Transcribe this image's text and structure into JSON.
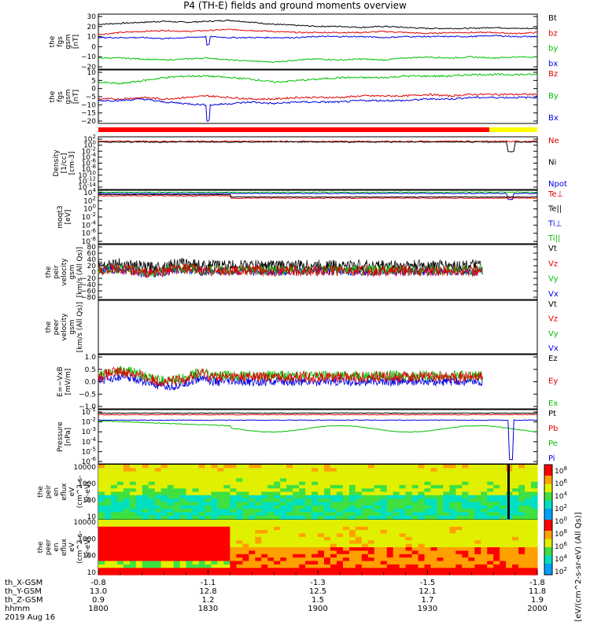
{
  "title": "P4 (TH-E) fields and ground moments overview",
  "chart_data": {
    "type": "line",
    "time_range": [
      "1800",
      "2000"
    ],
    "panels": [
      {
        "id": "fgs-gsm-1",
        "ylabel": [
          "the",
          "fgs",
          "gsm",
          "[nT]"
        ],
        "ticks": [
          "30",
          "20",
          "10",
          "0",
          "−10",
          "−20"
        ],
        "ylim": [
          -22,
          32
        ],
        "legend": [
          "Bt",
          "bz",
          "by",
          "bx"
        ],
        "series": [
          {
            "name": "Bt",
            "color": "#000000",
            "values": [
              22,
              23,
              24,
              25,
              24,
              25,
              26,
              24,
              22,
              21,
              20,
              20,
              19,
              20,
              19,
              18,
              18,
              18,
              19,
              18,
              18
            ]
          },
          {
            "name": "bz",
            "color": "#e00000",
            "values": [
              12,
              14,
              15,
              16,
              15,
              16,
              17,
              16,
              15,
              14,
              14,
              14,
              14,
              15,
              14,
              13,
              14,
              14,
              14,
              13,
              14
            ]
          },
          {
            "name": "by",
            "color": "#00c000",
            "values": [
              -11,
              -11,
              -12,
              -13,
              -12,
              -11,
              -13,
              -14,
              -15,
              -13,
              -12,
              -13,
              -12,
              -13,
              -11,
              -10,
              -11,
              -10,
              -11,
              -10,
              -10
            ]
          },
          {
            "name": "bx",
            "color": "#0000e0",
            "values": [
              9,
              9,
              9,
              8,
              9,
              10,
              9,
              9,
              9,
              9,
              10,
              10,
              10,
              9,
              10,
              10,
              10,
              10,
              11,
              10,
              10
            ]
          }
        ]
      },
      {
        "id": "fgs-gsm-2",
        "ylabel": [
          "the",
          "fgs",
          "gsm",
          "[nT]"
        ],
        "ticks": [
          "10",
          "5",
          "0",
          "−5",
          "−10",
          "−15",
          "−20"
        ],
        "ylim": [
          -22,
          13
        ],
        "legend": [
          "Bz",
          "By",
          "Bx"
        ],
        "series": [
          {
            "name": "Bz",
            "color": "#e00000",
            "values": [
              -6,
              -6,
              -5,
              -6,
              -5,
              -4,
              -5,
              -6,
              -6,
              -5,
              -5,
              -5,
              -4,
              -4,
              -4,
              -3,
              -4,
              -3,
              -3,
              -3,
              -3
            ]
          },
          {
            "name": "By",
            "color": "#00c000",
            "values": [
              5,
              4,
              6,
              8,
              9,
              9,
              8,
              7,
              5,
              6,
              7,
              8,
              8,
              8,
              9,
              9,
              9,
              10,
              10,
              10,
              10
            ]
          },
          {
            "name": "Bx",
            "color": "#0000e0",
            "values": [
              -7,
              -7,
              -6,
              -8,
              -9,
              -10,
              -9,
              -8,
              -9,
              -8,
              -8,
              -8,
              -7,
              -7,
              -7,
              -6,
              -6,
              -5,
              -5,
              -5,
              -5
            ]
          }
        ]
      },
      {
        "id": "density",
        "ylabel": [
          "Density",
          "[1/cc]",
          "[cm-3]"
        ],
        "ticks": [
          "10^2",
          "10^0",
          "10^-2",
          "10^-4",
          "10^-6",
          "10^-8",
          "10^-10",
          "10^-12",
          "10^-14"
        ],
        "legend": [
          "Ne",
          "Ni",
          "Npot"
        ],
        "legend_colors": [
          "#e00000",
          "#000000",
          "#0000e0"
        ]
      },
      {
        "id": "temperature",
        "ylabel": [
          "moqt3",
          "[eV]"
        ],
        "ticks": [
          "10^4",
          "10^2",
          "10^0",
          "10^-2",
          "10^-4",
          "10^-6",
          "10^-8"
        ],
        "legend": [
          "Te⊥",
          "Te||",
          "Ti⊥",
          "Ti||"
        ],
        "legend_colors": [
          "#e00000",
          "#000000",
          "#0000e0",
          "#00c000"
        ]
      },
      {
        "id": "peir-velocity",
        "ylabel": [
          "the",
          "peir",
          "velocity",
          "gsm",
          "[km/s (All Qs)]"
        ],
        "ticks": [
          "80",
          "60",
          "40",
          "20",
          "0",
          "−20",
          "−40",
          "−60",
          "−80"
        ],
        "ylim": [
          -90,
          90
        ],
        "legend": [
          "Vt",
          "Vz",
          "Vy",
          "Vx"
        ]
      },
      {
        "id": "peer-velocity",
        "ylabel": [
          "the",
          "peer",
          "velocity",
          "gsm",
          "[km/s (All Qs)]"
        ],
        "legend": [
          "Vt",
          "Vz",
          "Vy",
          "Vx"
        ]
      },
      {
        "id": "efield",
        "ylabel": [
          "E=−VxB",
          "[mV/m]"
        ],
        "ticks": [
          "1.0",
          "0.5",
          "0.0",
          "−0.5",
          "−1.0"
        ],
        "ylim": [
          -1.1,
          1.1
        ],
        "legend": [
          "Ez",
          "Ey",
          "Ex"
        ]
      },
      {
        "id": "pressure",
        "ylabel": [
          "Pressure",
          "[nPa]"
        ],
        "ticks": [
          "10^-1",
          "10^-2",
          "10^-3",
          "10^-4",
          "10^-5",
          "10^-6"
        ],
        "legend": [
          "Pt",
          "Pb",
          "Pe",
          "Pi"
        ],
        "legend_colors": [
          "#000000",
          "#e00000",
          "#00c000",
          "#0000e0"
        ]
      },
      {
        "id": "peir-spec",
        "ylabel": [
          "the",
          "peir",
          "en",
          "eflux",
          "eV",
          "(cm^2-s-",
          "sr-eV)"
        ],
        "ticks": [
          "10000",
          "1000",
          "100",
          "10"
        ]
      },
      {
        "id": "peer-spec",
        "ylabel": [
          "the",
          "peer",
          "en",
          "eflux",
          "eV",
          "(cm^2-s-",
          "sr-eV)"
        ],
        "ticks": [
          "10000",
          "1000",
          "100",
          "10"
        ]
      }
    ],
    "colorbar": {
      "label": "[eV/(cm^2-s-sr-eV) (All Qs)]",
      "ticks": [
        "10^8",
        "10^6",
        "10^4",
        "10^2",
        "10^0",
        "10^8",
        "10^6",
        "10^4",
        "10^2"
      ]
    },
    "xaxis_rows": [
      {
        "label": "th_X-GSM",
        "values": [
          "-0.8",
          "-1.1",
          "-1.3",
          "-1.5",
          "-1.8"
        ]
      },
      {
        "label": "th_Y-GSM",
        "values": [
          "13.0",
          "12.8",
          "12.5",
          "12.1",
          "11.8"
        ]
      },
      {
        "label": "th_Z-GSM",
        "values": [
          "0.9",
          "1.2",
          "1.5",
          "1.7",
          "1.9"
        ]
      },
      {
        "label": "hhmm",
        "values": [
          "1800",
          "1830",
          "1900",
          "1930",
          "2000"
        ]
      }
    ],
    "date": "2019 Aug 16"
  }
}
